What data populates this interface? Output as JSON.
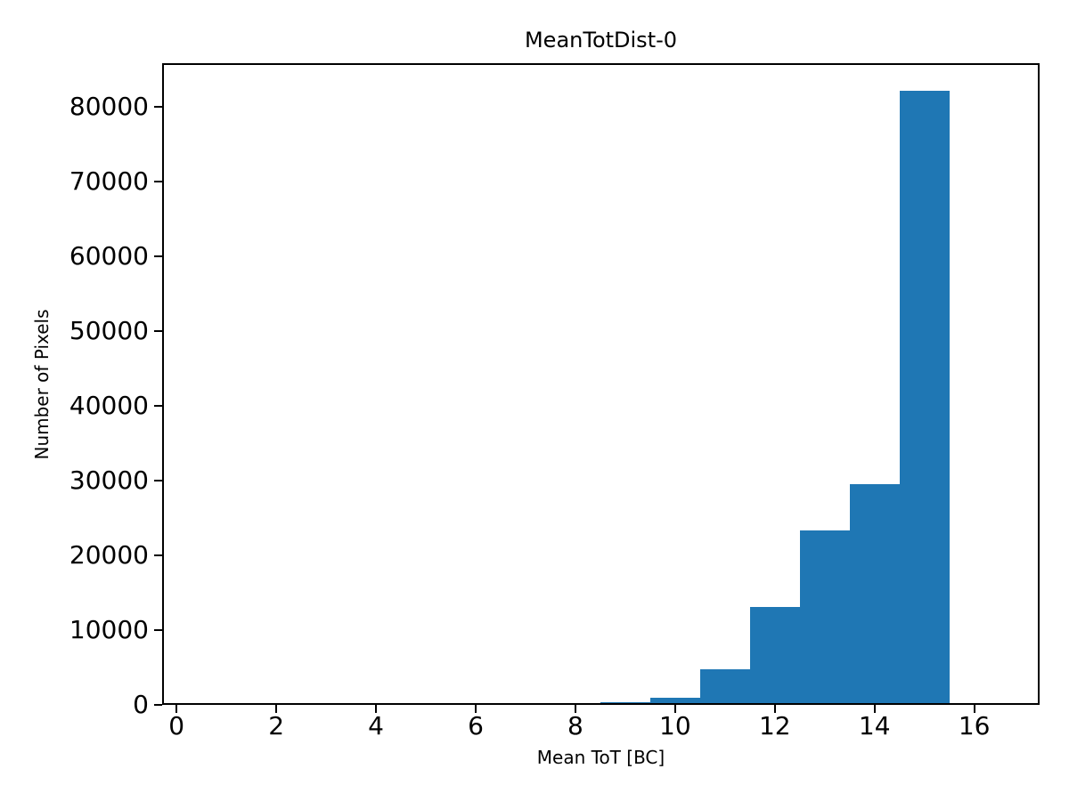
{
  "chart_data": {
    "type": "bar",
    "subtype": "histogram",
    "title": "MeanTotDist-0",
    "xlabel": "Mean ToT [BC]",
    "ylabel": "Number of Pixels",
    "bin_edges": [
      0.5,
      1.5,
      2.5,
      3.5,
      4.5,
      5.5,
      6.5,
      7.5,
      8.5,
      9.5,
      10.5,
      11.5,
      12.5,
      13.5,
      14.5,
      15.5,
      16.5
    ],
    "counts": [
      0,
      0,
      0,
      0,
      0,
      0,
      0,
      0,
      300,
      1000,
      4800,
      13100,
      23300,
      29500,
      82100,
      0
    ],
    "xticks": [
      0,
      2,
      4,
      6,
      8,
      10,
      12,
      14,
      16
    ],
    "yticks": [
      0,
      10000,
      20000,
      30000,
      40000,
      50000,
      60000,
      70000,
      80000
    ],
    "xlim": [
      -0.29,
      17.31
    ],
    "ylim": [
      0,
      85833
    ],
    "grid": false,
    "legend": null,
    "bar_color": "#1f77b4",
    "background_color": "#ffffff",
    "text_color": "#000000"
  }
}
